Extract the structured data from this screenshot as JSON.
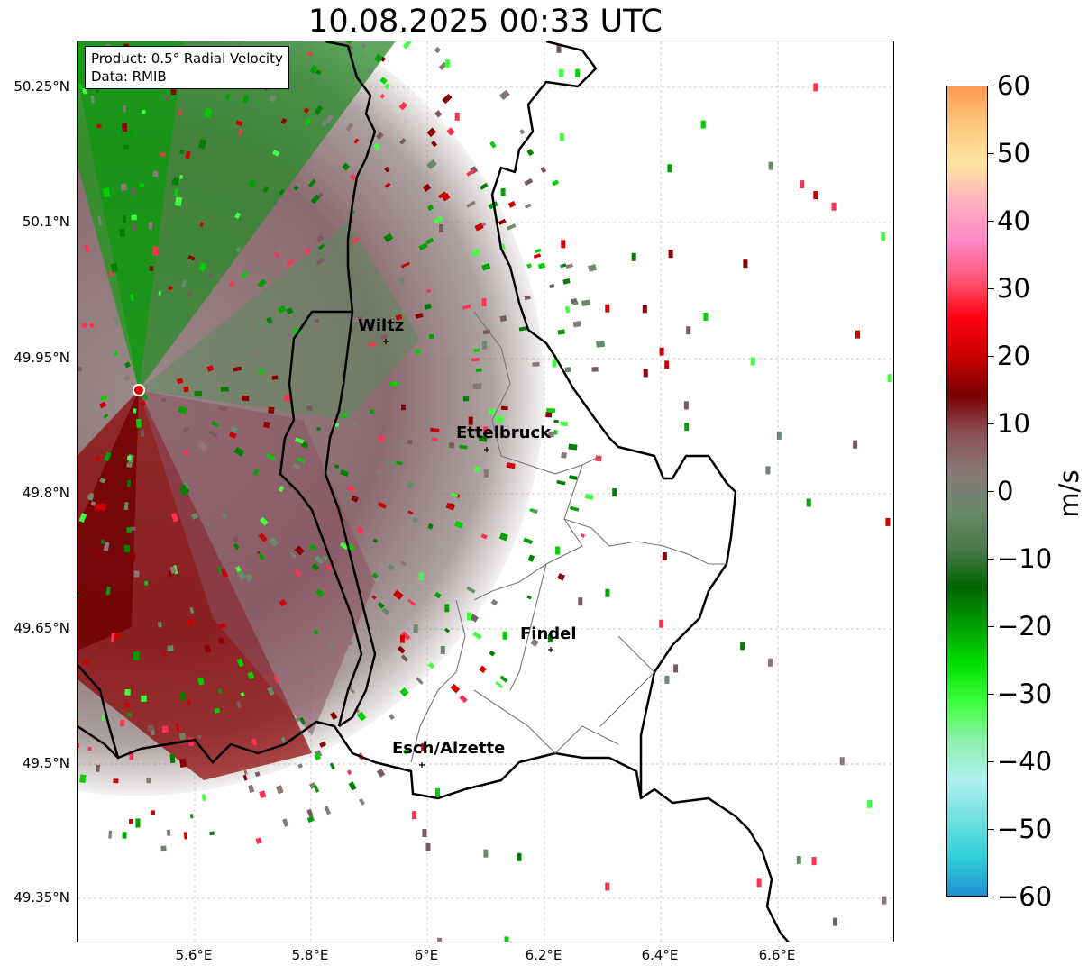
{
  "title": "10.08.2025 00:33 UTC",
  "info": {
    "product": "Product: 0.5° Radial Velocity",
    "data": "Data: RMIB"
  },
  "lat_labels": [
    "50.25°N",
    "50.1°N",
    "49.95°N",
    "49.8°N",
    "49.65°N",
    "49.5°N",
    "49.35°N"
  ],
  "lon_labels": [
    "5.6°E",
    "5.8°E",
    "6°E",
    "6.2°E",
    "6.4°E",
    "6.6°E"
  ],
  "colorbar": {
    "unit": "m/s",
    "ticks": [
      "60",
      "50",
      "40",
      "30",
      "20",
      "10",
      "0",
      "−10",
      "−20",
      "−30",
      "−40",
      "−50",
      "−60"
    ],
    "range": [
      -60,
      60
    ],
    "stops": [
      "#ff9a50",
      "#ffc880",
      "#ffe6a0",
      "#ffb0c0",
      "#ff88c8",
      "#ff5878",
      "#ff0010",
      "#cc0000",
      "#7a0000",
      "#8a5058",
      "#8a7878",
      "#6a8a6a",
      "#4a7a4a",
      "#006400",
      "#00a000",
      "#00e000",
      "#40ff40",
      "#90f0b0",
      "#b0f0f0",
      "#70e0e0",
      "#30d0d8",
      "#2090d0"
    ]
  },
  "cities": [
    {
      "name": "Wiltz"
    },
    {
      "name": "Ettelbruck"
    },
    {
      "name": "Findel"
    },
    {
      "name": "Esch/Alzette"
    }
  ],
  "colors": {
    "inbound_green": "#00a000",
    "outbound_red": "#8b0000",
    "zero_grey": "#8a7878",
    "radar_site": "#e00000"
  }
}
